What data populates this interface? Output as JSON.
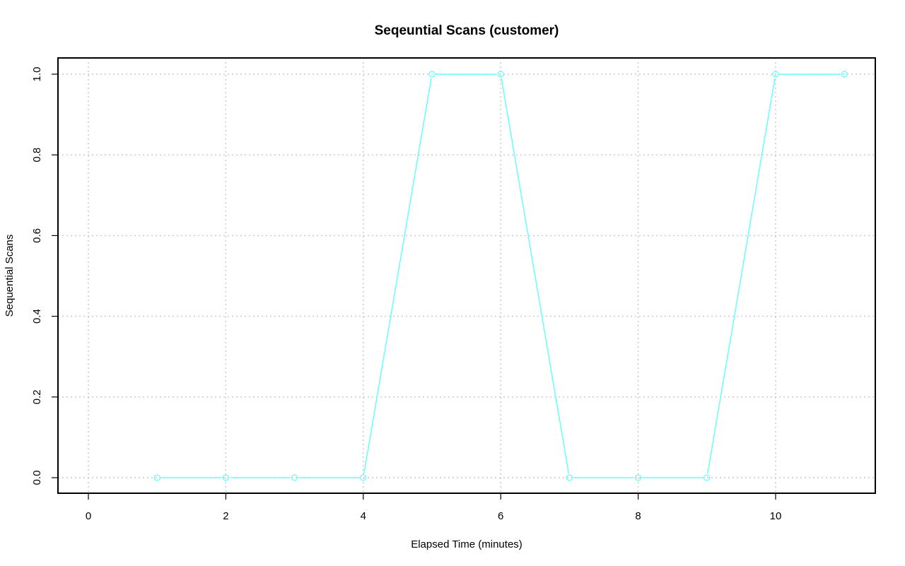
{
  "chart_data": {
    "type": "line",
    "title": "Seqeuntial Scans (customer)",
    "xlabel": "Elapsed Time (minutes)",
    "ylabel": "Sequential Scans",
    "xlim": [
      0,
      11
    ],
    "ylim": [
      0,
      1
    ],
    "x_ticks": [
      0,
      2,
      4,
      6,
      8,
      10
    ],
    "y_ticks": [
      0.0,
      0.2,
      0.4,
      0.6,
      0.8,
      1.0
    ],
    "y_tick_labels": [
      "0.0",
      "0.2",
      "0.4",
      "0.6",
      "0.8",
      "1.0"
    ],
    "grid": true,
    "legend": "none",
    "series": [
      {
        "color": "#66ffff",
        "marker": "open-circle",
        "x": [
          1,
          2,
          3,
          4,
          5,
          6,
          7,
          8,
          9,
          10,
          11
        ],
        "values": [
          0,
          0,
          0,
          0,
          1,
          1,
          0,
          0,
          0,
          1,
          1
        ]
      }
    ]
  }
}
